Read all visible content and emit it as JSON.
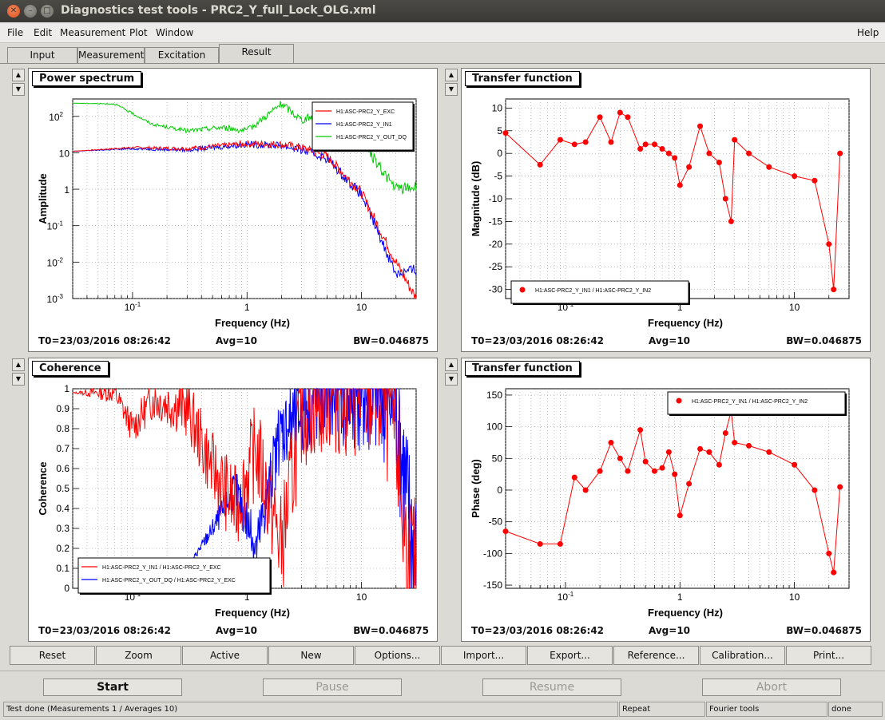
{
  "window": {
    "title": "Diagnostics test tools - PRC2_Y_full_Lock_OLG.xml"
  },
  "menu": {
    "file": "File",
    "edit": "Edit",
    "measurement": "Measurement",
    "plot": "Plot",
    "window": "Window",
    "help": "Help"
  },
  "tabs": [
    "Input",
    "Measurement",
    "Excitation",
    "Result"
  ],
  "panels": {
    "power": {
      "title": "Power spectrum",
      "ylabel": "Amplitude",
      "xlabel": "Frequency (Hz)",
      "legend": [
        "H1:ASC-PRC2_Y_EXC",
        "H1:ASC-PRC2_Y_IN1",
        "H1:ASC-PRC2_Y_OUT_DQ"
      ]
    },
    "tfmag": {
      "title": "Transfer function",
      "ylabel": "Magnitude (dB)",
      "xlabel": "Frequency (Hz)",
      "legend": [
        "H1:ASC-PRC2_Y_IN1 / H1:ASC-PRC2_Y_IN2"
      ]
    },
    "coh": {
      "title": "Coherence",
      "ylabel": "Coherence",
      "xlabel": "Frequency (Hz)",
      "legend": [
        "H1:ASC-PRC2_Y_IN1 / H1:ASC-PRC2_Y_EXC",
        "H1:ASC-PRC2_Y_OUT_DQ / H1:ASC-PRC2_Y_EXC"
      ]
    },
    "tfphase": {
      "title": "Transfer function",
      "ylabel": "Phase (deg)",
      "xlabel": "Frequency (Hz)",
      "legend": [
        "H1:ASC-PRC2_Y_IN1 / H1:ASC-PRC2_Y_IN2"
      ]
    }
  },
  "stats": {
    "t0": "T0=23/03/2016 08:26:42",
    "avg": "Avg=10",
    "bw": "BW=0.046875"
  },
  "buttons": [
    "Reset",
    "Zoom",
    "Active",
    "New",
    "Options...",
    "Import...",
    "Export...",
    "Reference...",
    "Calibration...",
    "Print..."
  ],
  "run": {
    "start": "Start",
    "pause": "Pause",
    "resume": "Resume",
    "abort": "Abort"
  },
  "statusbar": {
    "msg": "Test done (Measurements 1 / Averages 10)",
    "repeat": "Repeat",
    "tool": "Fourier tools",
    "state": "done"
  },
  "colors": {
    "red": "#ff0000",
    "blue": "#0000ff",
    "green": "#00cc00"
  },
  "chart_data": [
    {
      "type": "line",
      "title": "Power spectrum",
      "xlabel": "Frequency (Hz)",
      "ylabel": "Amplitude",
      "xscale": "log",
      "yscale": "log",
      "xlim": [
        0.03,
        30
      ],
      "ylim": [
        0.001,
        300
      ],
      "x_ticks": [
        "10^-1",
        "1",
        "10"
      ],
      "y_ticks": [
        "10^-3",
        "10^-2",
        "10^-1",
        "1",
        "10",
        "10^2"
      ],
      "series": [
        {
          "name": "H1:ASC-PRC2_Y_EXC",
          "color": "red",
          "x": [
            0.03,
            0.1,
            0.3,
            1,
            2,
            3,
            5,
            10,
            20,
            30
          ],
          "y": [
            11,
            14,
            13,
            18,
            17,
            14,
            8,
            0.8,
            0.01,
            0.001
          ]
        },
        {
          "name": "H1:ASC-PRC2_Y_IN1",
          "color": "blue",
          "x": [
            0.03,
            0.1,
            0.3,
            1,
            2,
            3,
            5,
            10,
            20,
            30
          ],
          "y": [
            11,
            13,
            12,
            17,
            16,
            12,
            7,
            0.7,
            0.005,
            0.006
          ]
        },
        {
          "name": "H1:ASC-PRC2_Y_OUT_DQ",
          "color": "green",
          "x": [
            0.03,
            0.07,
            0.15,
            0.3,
            0.6,
            1,
            2,
            3,
            5,
            10,
            20,
            30
          ],
          "y": [
            230,
            220,
            60,
            40,
            50,
            40,
            220,
            80,
            130,
            20,
            1.0,
            1.2
          ]
        }
      ]
    },
    {
      "type": "scatter",
      "title": "Transfer function",
      "xlabel": "Frequency (Hz)",
      "ylabel": "Magnitude (dB)",
      "xscale": "log",
      "xlim": [
        0.03,
        30
      ],
      "ylim": [
        -32,
        12
      ],
      "y_ticks": [
        -30,
        -25,
        -20,
        -15,
        -10,
        -5,
        0,
        5,
        10
      ],
      "series": [
        {
          "name": "H1:ASC-PRC2_Y_IN1 / H1:ASC-PRC2_Y_IN2",
          "color": "red",
          "x": [
            0.03,
            0.06,
            0.09,
            0.12,
            0.15,
            0.2,
            0.25,
            0.3,
            0.35,
            0.45,
            0.5,
            0.6,
            0.7,
            0.8,
            0.9,
            1.0,
            1.2,
            1.5,
            1.8,
            2.2,
            2.5,
            2.8,
            3.0,
            4.0,
            6.0,
            10,
            15,
            20,
            22,
            25
          ],
          "y": [
            4.5,
            -2.5,
            3,
            2,
            2.5,
            8,
            2.5,
            9,
            8,
            1,
            2,
            2,
            1,
            0,
            -1,
            -7,
            -3,
            6,
            0,
            -2,
            -10,
            -15,
            3,
            0,
            -3,
            -5,
            -6,
            -20,
            -30,
            0
          ]
        }
      ]
    },
    {
      "type": "line",
      "title": "Coherence",
      "xlabel": "Frequency (Hz)",
      "ylabel": "Coherence",
      "xscale": "log",
      "xlim": [
        0.03,
        30
      ],
      "ylim": [
        0,
        1
      ],
      "y_ticks": [
        0,
        0.1,
        0.2,
        0.3,
        0.4,
        0.5,
        0.6,
        0.7,
        0.8,
        0.9,
        1
      ],
      "series": [
        {
          "name": "H1:ASC-PRC2_Y_IN1 / H1:ASC-PRC2_Y_EXC",
          "color": "red",
          "x": [
            0.03,
            0.07,
            0.1,
            0.15,
            0.3,
            0.5,
            0.8,
            1.2,
            2,
            3,
            5,
            10,
            15,
            20,
            25,
            30
          ],
          "y": [
            0.98,
            0.98,
            0.8,
            0.95,
            0.9,
            0.6,
            0.4,
            0.7,
            0.2,
            0.9,
            1.0,
            1.0,
            0.99,
            0.8,
            0.1,
            0.0
          ]
        },
        {
          "name": "H1:ASC-PRC2_Y_OUT_DQ / H1:ASC-PRC2_Y_EXC",
          "color": "blue",
          "x": [
            0.3,
            0.5,
            0.8,
            1.2,
            2,
            3,
            5,
            10,
            15,
            20,
            25,
            30
          ],
          "y": [
            0.1,
            0.3,
            0.5,
            0.2,
            0.8,
            0.9,
            1.0,
            1.0,
            0.99,
            0.95,
            0.4,
            0.1
          ]
        }
      ]
    },
    {
      "type": "scatter",
      "title": "Transfer function",
      "xlabel": "Frequency (Hz)",
      "ylabel": "Phase (deg)",
      "xscale": "log",
      "xlim": [
        0.03,
        30
      ],
      "ylim": [
        -155,
        160
      ],
      "y_ticks": [
        -150,
        -100,
        -50,
        0,
        50,
        100,
        150
      ],
      "series": [
        {
          "name": "H1:ASC-PRC2_Y_IN1 / H1:ASC-PRC2_Y_IN2",
          "color": "red",
          "x": [
            0.03,
            0.06,
            0.09,
            0.12,
            0.15,
            0.2,
            0.25,
            0.3,
            0.35,
            0.45,
            0.5,
            0.6,
            0.7,
            0.8,
            0.9,
            1.0,
            1.2,
            1.5,
            1.8,
            2.2,
            2.5,
            2.8,
            3.0,
            4.0,
            6.0,
            10,
            15,
            20,
            22,
            25
          ],
          "y": [
            -65,
            -85,
            -85,
            20,
            0,
            30,
            75,
            50,
            30,
            95,
            45,
            30,
            35,
            60,
            25,
            -40,
            10,
            65,
            60,
            40,
            90,
            125,
            75,
            70,
            60,
            40,
            0,
            -100,
            -130,
            5
          ]
        }
      ]
    }
  ]
}
